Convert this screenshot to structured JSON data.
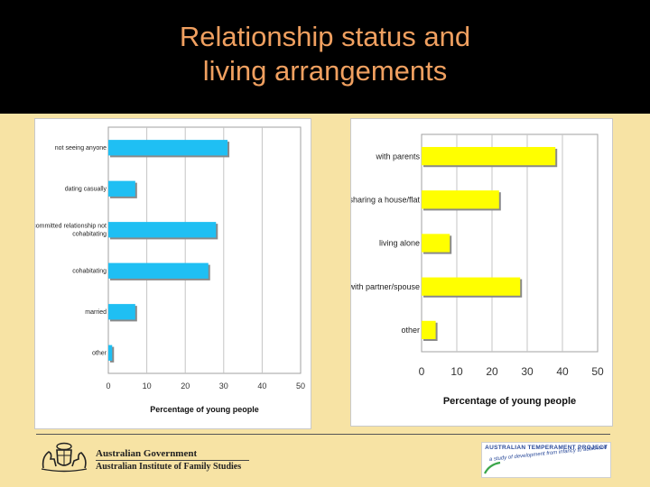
{
  "slide": {
    "title_line1": "Relationship status and",
    "title_line2": "living arrangements"
  },
  "chart_data": [
    {
      "type": "bar",
      "orientation": "horizontal",
      "categories": [
        "not seeing anyone",
        "dating casually",
        "committed relationship not cohabitating",
        "cohabitating",
        "married",
        "other"
      ],
      "values": [
        31,
        7,
        28,
        26,
        7,
        1
      ],
      "xlabel": "Percentage of young people",
      "xlim": [
        0,
        50
      ],
      "xticks": [
        0,
        10,
        20,
        30,
        40,
        50
      ],
      "color": "#1fbff3",
      "grid": "vertical"
    },
    {
      "type": "bar",
      "orientation": "horizontal",
      "categories": [
        "with parents",
        "sharing a house/flat",
        "living alone",
        "with partner/spouse",
        "other"
      ],
      "values": [
        38,
        22,
        8,
        28,
        4
      ],
      "xlabel": "Percentage of young people",
      "xlim": [
        0,
        50
      ],
      "xticks": [
        0,
        10,
        20,
        30,
        40,
        50
      ],
      "color": "#ffff00",
      "grid": "vertical"
    }
  ],
  "footer": {
    "gov_line1": "Australian Government",
    "gov_line2": "Australian Institute of Family Studies",
    "atp_title": "AUSTRALIAN TEMPERAMENT PROJECT",
    "atp_subtitle": "a study of development from infancy to adulthood"
  }
}
